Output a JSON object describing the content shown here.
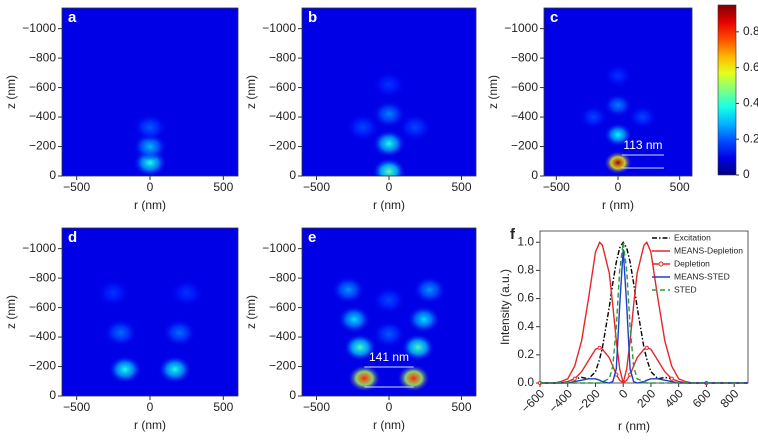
{
  "chart_data": [
    {
      "type": "heatmap",
      "label": "a",
      "xlabel": "r (nm)",
      "ylabel": "z (nm)",
      "xlim": [
        -600,
        600
      ],
      "ylim": [
        0,
        -1140
      ],
      "xticks": [
        {
          "value": -500,
          "label": "−500"
        },
        0,
        500
      ],
      "yticks": [
        0,
        {
          "value": -200,
          "label": "−200"
        },
        {
          "value": -400,
          "label": "−400"
        },
        {
          "value": -600,
          "label": "−600"
        },
        {
          "value": -800,
          "label": "−800"
        },
        {
          "value": -1000,
          "label": "−1000"
        }
      ],
      "x": [
        0,
        0,
        0
      ],
      "y": [
        -90,
        -200,
        -330
      ],
      "values": [
        0.32,
        0.22,
        0.12
      ]
    },
    {
      "type": "heatmap",
      "label": "b",
      "xlabel": "r (nm)",
      "ylabel": "z (nm)",
      "xlim": [
        -600,
        600
      ],
      "ylim": [
        0,
        -1140
      ],
      "xticks": [
        {
          "value": -500,
          "label": "−500"
        },
        0,
        500
      ],
      "yticks": [
        0,
        {
          "value": -200,
          "label": "−200"
        },
        {
          "value": -400,
          "label": "−400"
        },
        {
          "value": -600,
          "label": "−600"
        },
        {
          "value": -800,
          "label": "−800"
        },
        {
          "value": -1000,
          "label": "−1000"
        }
      ],
      "x": [
        0,
        0,
        0,
        0,
        -180,
        180
      ],
      "y": [
        -30,
        -220,
        -420,
        -620,
        -330,
        -330
      ],
      "values": [
        0.38,
        0.32,
        0.16,
        0.08,
        0.1,
        0.1
      ]
    },
    {
      "type": "heatmap",
      "label": "c",
      "xlabel": "r (nm)",
      "ylabel": "z (nm)",
      "xlim": [
        -600,
        600
      ],
      "ylim": [
        0,
        -1140
      ],
      "xticks": [
        {
          "value": -500,
          "label": "−500"
        },
        0,
        500
      ],
      "yticks": [
        0,
        {
          "value": -200,
          "label": "−200"
        },
        {
          "value": -400,
          "label": "−400"
        },
        {
          "value": -600,
          "label": "−600"
        },
        {
          "value": -800,
          "label": "−800"
        },
        {
          "value": -1000,
          "label": "−1000"
        }
      ],
      "x": [
        0,
        0,
        0,
        0,
        -200,
        200
      ],
      "y": [
        -90,
        -280,
        -480,
        -680,
        -400,
        -400
      ],
      "values": [
        0.92,
        0.3,
        0.16,
        0.08,
        0.1,
        0.1
      ],
      "annotation": "113 nm",
      "colorbar": {
        "lim": [
          0,
          0.95
        ],
        "ticks": [
          0,
          0.2,
          0.4,
          0.6,
          0.8
        ]
      }
    },
    {
      "type": "heatmap",
      "label": "d",
      "xlabel": "r (nm)",
      "ylabel": "z (nm)",
      "xlim": [
        -600,
        600
      ],
      "ylim": [
        0,
        -1140
      ],
      "xticks": [
        {
          "value": -500,
          "label": "−500"
        },
        0,
        500
      ],
      "yticks": [
        0,
        {
          "value": -200,
          "label": "−200"
        },
        {
          "value": -400,
          "label": "−400"
        },
        {
          "value": -600,
          "label": "−600"
        },
        {
          "value": -800,
          "label": "−800"
        },
        {
          "value": -1000,
          "label": "−1000"
        }
      ],
      "x": [
        -170,
        170,
        -200,
        200,
        -250,
        250
      ],
      "y": [
        -180,
        -180,
        -430,
        -430,
        -700,
        -700
      ],
      "values": [
        0.32,
        0.32,
        0.14,
        0.14,
        0.08,
        0.08
      ]
    },
    {
      "type": "heatmap",
      "label": "e",
      "xlabel": "r (nm)",
      "ylabel": "z (nm)",
      "xlim": [
        -600,
        600
      ],
      "ylim": [
        0,
        -1140
      ],
      "xticks": [
        {
          "value": -500,
          "label": "−500"
        },
        0,
        500
      ],
      "yticks": [
        0,
        {
          "value": -200,
          "label": "−200"
        },
        {
          "value": -400,
          "label": "−400"
        },
        {
          "value": -600,
          "label": "−600"
        },
        {
          "value": -800,
          "label": "−800"
        },
        {
          "value": -1000,
          "label": "−1000"
        }
      ],
      "x": [
        -170,
        170,
        -200,
        200,
        -240,
        240,
        -280,
        280,
        0,
        0
      ],
      "y": [
        -120,
        -120,
        -330,
        -330,
        -520,
        -520,
        -720,
        -720,
        -420,
        -650
      ],
      "values": [
        0.78,
        0.78,
        0.36,
        0.36,
        0.26,
        0.26,
        0.18,
        0.18,
        0.12,
        0.1
      ],
      "annotation": "141 nm"
    },
    {
      "type": "line",
      "label": "f",
      "xlabel": "r (nm)",
      "ylabel": "Intensity (a.u.)",
      "xlim": [
        -600,
        900
      ],
      "ylim": [
        0,
        1.08
      ],
      "xticks": [
        {
          "value": -600,
          "label": "−600"
        },
        {
          "value": -400,
          "label": "−400"
        },
        {
          "value": -200,
          "label": "−200"
        },
        0,
        200,
        400,
        600,
        800
      ],
      "yticks": [
        {
          "value": 0,
          "label": "0.0"
        },
        0.2,
        0.4,
        0.6,
        0.8,
        {
          "value": 1,
          "label": "1.0"
        }
      ],
      "legend": "upper right",
      "x": [
        -600,
        -500,
        -450,
        -400,
        -350,
        -300,
        -250,
        -200,
        -170,
        -150,
        -100,
        -75,
        -50,
        -25,
        0,
        25,
        50,
        75,
        100,
        150,
        170,
        200,
        250,
        300,
        350,
        400,
        450,
        500,
        600,
        700,
        800,
        900
      ],
      "series": [
        {
          "name": "Excitation",
          "color": "#000000",
          "linestyle": "dashdot",
          "values": [
            0,
            0,
            0,
            0.01,
            0.03,
            0.04,
            0.03,
            0.08,
            0.17,
            0.25,
            0.54,
            0.71,
            0.86,
            0.96,
            1,
            0.96,
            0.86,
            0.71,
            0.54,
            0.25,
            0.17,
            0.08,
            0.03,
            0.04,
            0.03,
            0.01,
            0,
            0,
            0,
            0,
            0,
            0
          ]
        },
        {
          "name": "MEANS-Depletion",
          "color": "#e8262a",
          "linestyle": "solid",
          "values": [
            0,
            0,
            0.01,
            0.03,
            0.12,
            0.3,
            0.6,
            0.93,
            1,
            0.98,
            0.78,
            0.55,
            0.3,
            0.1,
            0,
            0.1,
            0.3,
            0.55,
            0.78,
            0.98,
            1,
            0.93,
            0.6,
            0.3,
            0.12,
            0.03,
            0.01,
            0,
            0,
            0,
            0,
            0
          ]
        },
        {
          "name": "Depletion",
          "color": "#e8262a",
          "linestyle": "solid",
          "marker": "circle",
          "values": [
            0,
            0,
            0,
            0.01,
            0.03,
            0.08,
            0.16,
            0.24,
            0.25,
            0.24,
            0.18,
            0.12,
            0.06,
            0.02,
            0,
            0.02,
            0.06,
            0.12,
            0.18,
            0.24,
            0.25,
            0.24,
            0.16,
            0.08,
            0.03,
            0.01,
            0,
            0,
            0,
            0,
            0,
            0
          ]
        },
        {
          "name": "MEANS-STED",
          "color": "#1f3fc9",
          "linestyle": "solid",
          "values": [
            0,
            0,
            0,
            0,
            0.01,
            0.02,
            0.03,
            0.03,
            0.02,
            0.01,
            0,
            0.01,
            0.1,
            0.55,
            0.95,
            0.55,
            0.1,
            0.01,
            0,
            0.01,
            0.02,
            0.03,
            0.03,
            0.02,
            0.01,
            0,
            0,
            0,
            0,
            0,
            0,
            0
          ]
        },
        {
          "name": "STED",
          "color": "#2a9d3a",
          "linestyle": "dashed",
          "values": [
            0,
            0,
            0,
            0,
            0,
            0,
            0,
            0,
            0,
            0.01,
            0.03,
            0.12,
            0.4,
            0.8,
            1,
            0.8,
            0.4,
            0.12,
            0.03,
            0.01,
            0,
            0,
            0,
            0,
            0,
            0,
            0,
            0,
            0,
            0,
            0,
            0
          ]
        }
      ]
    }
  ]
}
